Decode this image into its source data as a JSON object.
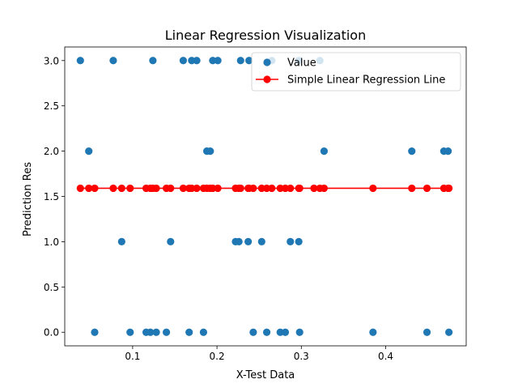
{
  "chart_data": {
    "type": "scatter",
    "title": "Linear Regression Visualization",
    "xlabel": "X-Test Data",
    "ylabel": "Prediction Res",
    "xlim": [
      0.0195,
      0.4955
    ],
    "ylim": [
      -0.15,
      3.15
    ],
    "xticks": [
      0.1,
      0.2,
      0.3,
      0.4
    ],
    "xtick_labels": [
      "0.1",
      "0.2",
      "0.3",
      "0.4"
    ],
    "yticks": [
      0.0,
      0.5,
      1.0,
      1.5,
      2.0,
      2.5,
      3.0
    ],
    "ytick_labels": [
      "0.0",
      "0.5",
      "1.0",
      "1.5",
      "2.0",
      "2.5",
      "3.0"
    ],
    "grid": false,
    "legend": {
      "position": "top-right"
    },
    "colors": {
      "scatter": "#1f77b4",
      "line": "#ff0000"
    },
    "series": [
      {
        "name": "Value",
        "kind": "scatter",
        "points": [
          [
            0.038,
            3
          ],
          [
            0.077,
            3
          ],
          [
            0.124,
            3
          ],
          [
            0.16,
            3
          ],
          [
            0.17,
            3
          ],
          [
            0.176,
            3
          ],
          [
            0.195,
            3
          ],
          [
            0.201,
            3
          ],
          [
            0.228,
            3
          ],
          [
            0.238,
            3
          ],
          [
            0.265,
            3
          ],
          [
            0.297,
            3
          ],
          [
            0.322,
            3
          ],
          [
            0.048,
            2
          ],
          [
            0.188,
            2
          ],
          [
            0.192,
            2
          ],
          [
            0.327,
            2
          ],
          [
            0.431,
            2
          ],
          [
            0.469,
            2
          ],
          [
            0.474,
            2
          ],
          [
            0.087,
            1
          ],
          [
            0.145,
            1
          ],
          [
            0.222,
            1
          ],
          [
            0.226,
            1
          ],
          [
            0.237,
            1
          ],
          [
            0.253,
            1
          ],
          [
            0.287,
            1
          ],
          [
            0.297,
            1
          ],
          [
            0.055,
            0
          ],
          [
            0.097,
            0
          ],
          [
            0.116,
            0
          ],
          [
            0.121,
            0
          ],
          [
            0.128,
            0
          ],
          [
            0.14,
            0
          ],
          [
            0.167,
            0
          ],
          [
            0.184,
            0
          ],
          [
            0.243,
            0
          ],
          [
            0.259,
            0
          ],
          [
            0.275,
            0
          ],
          [
            0.281,
            0
          ],
          [
            0.298,
            0
          ],
          [
            0.385,
            0
          ],
          [
            0.449,
            0
          ],
          [
            0.475,
            0
          ]
        ]
      },
      {
        "name": "Simple Linear Regression Line",
        "kind": "line",
        "x": [
          0.038,
          0.048,
          0.055,
          0.077,
          0.087,
          0.097,
          0.116,
          0.121,
          0.124,
          0.128,
          0.14,
          0.145,
          0.16,
          0.167,
          0.17,
          0.176,
          0.184,
          0.188,
          0.192,
          0.195,
          0.201,
          0.222,
          0.226,
          0.228,
          0.237,
          0.238,
          0.243,
          0.253,
          0.259,
          0.265,
          0.275,
          0.281,
          0.287,
          0.297,
          0.298,
          0.315,
          0.322,
          0.327,
          0.385,
          0.431,
          0.449,
          0.469,
          0.474,
          0.475
        ],
        "y_value": 1.59
      }
    ]
  }
}
